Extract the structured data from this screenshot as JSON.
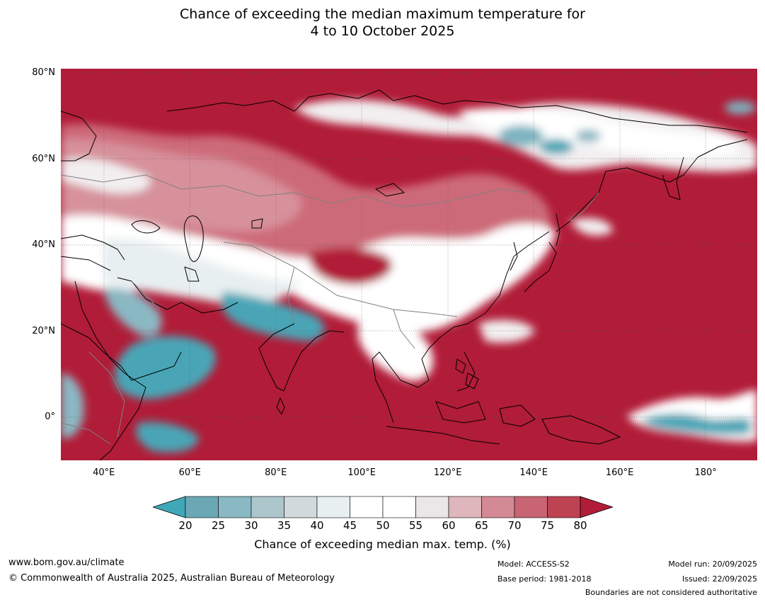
{
  "title": {
    "line1": "Chance of exceeding the median maximum temperature for",
    "line2": "4 to 10 October 2025"
  },
  "map": {
    "extent": {
      "lon_min": 30,
      "lon_max": 192,
      "lat_min": -10,
      "lat_max": 81
    },
    "lat_ticks": [
      {
        "value": 80,
        "label": "80°N"
      },
      {
        "value": 60,
        "label": "60°N"
      },
      {
        "value": 40,
        "label": "40°N"
      },
      {
        "value": 20,
        "label": "20°N"
      },
      {
        "value": 0,
        "label": "0°"
      }
    ],
    "lon_ticks": [
      {
        "value": 40,
        "label": "40°E"
      },
      {
        "value": 60,
        "label": "60°E"
      },
      {
        "value": 80,
        "label": "80°E"
      },
      {
        "value": 100,
        "label": "100°E"
      },
      {
        "value": 120,
        "label": "120°E"
      },
      {
        "value": 140,
        "label": "140°E"
      },
      {
        "value": 160,
        "label": "160°E"
      },
      {
        "value": 180,
        "label": "180°"
      }
    ],
    "background_color": "#b11c38"
  },
  "colorbar": {
    "levels": [
      "20",
      "25",
      "30",
      "35",
      "40",
      "45",
      "50",
      "55",
      "60",
      "65",
      "70",
      "75",
      "80"
    ],
    "colors": [
      "#6ba8b5",
      "#8ab8c3",
      "#acc6cc",
      "#d0d9db",
      "#e8eff0",
      "#ffffff",
      "#ffffff",
      "#ebe6e7",
      "#deb6bb",
      "#d48a95",
      "#c86473",
      "#be4352"
    ],
    "under_color": "#3fa7b8",
    "over_color": "#b11c38",
    "label": "Chance of exceeding median max. temp. (%)"
  },
  "footer": {
    "website": "www.bom.gov.au/climate",
    "copyright": "© Commonwealth of Australia 2025, Australian Bureau of Meteorology",
    "model": "Model: ACCESS-S2",
    "base_period": "Base period: 1981-2018",
    "model_run": "Model run: 20/09/2025",
    "issued": "Issued: 22/09/2025",
    "disclaimer": "Boundaries are not considered authoritative"
  }
}
